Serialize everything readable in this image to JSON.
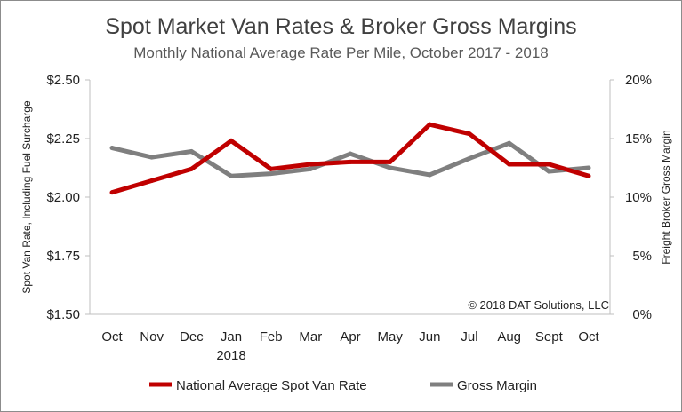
{
  "chart_data": {
    "type": "line",
    "title": "Spot Market Van Rates & Broker Gross Margins",
    "subtitle": "Monthly National Average Rate Per Mile, October 2017 - 2018",
    "categories": [
      "Oct",
      "Nov",
      "Dec",
      "Jan",
      "Feb",
      "Mar",
      "Apr",
      "May",
      "Jun",
      "Jul",
      "Aug",
      "Sept",
      "Oct"
    ],
    "category_sublabels": [
      "",
      "",
      "",
      "2018",
      "",
      "",
      "",
      "",
      "",
      "",
      "",
      "",
      ""
    ],
    "ylabel_left": "Spot Van Rate, Including Fuel Surcharge",
    "ylabel_right": "Freight Broker Gross Margin",
    "y_left_ticks": [
      "$2.50",
      "$2.25",
      "$2.00",
      "$1.75",
      "$1.50"
    ],
    "y_right_ticks": [
      "20%",
      "15%",
      "10%",
      "5%",
      "0%"
    ],
    "ylim_left": [
      1.5,
      2.5
    ],
    "ylim_right": [
      0,
      20
    ],
    "grid": false,
    "legend_position": "bottom",
    "annotation": "© 2018 DAT Solutions, LLC",
    "series": [
      {
        "name": "National Average Spot Van Rate",
        "axis": "left",
        "color": "#c00000",
        "values": [
          2.02,
          2.07,
          2.12,
          2.24,
          2.12,
          2.14,
          2.15,
          2.15,
          2.31,
          2.27,
          2.14,
          2.14,
          2.09
        ]
      },
      {
        "name": "Gross Margin",
        "axis": "right",
        "color": "#7f7f7f",
        "values": [
          14.2,
          13.4,
          13.9,
          11.8,
          12.0,
          12.4,
          13.7,
          12.5,
          11.9,
          13.3,
          14.6,
          12.2,
          12.5
        ]
      }
    ]
  }
}
